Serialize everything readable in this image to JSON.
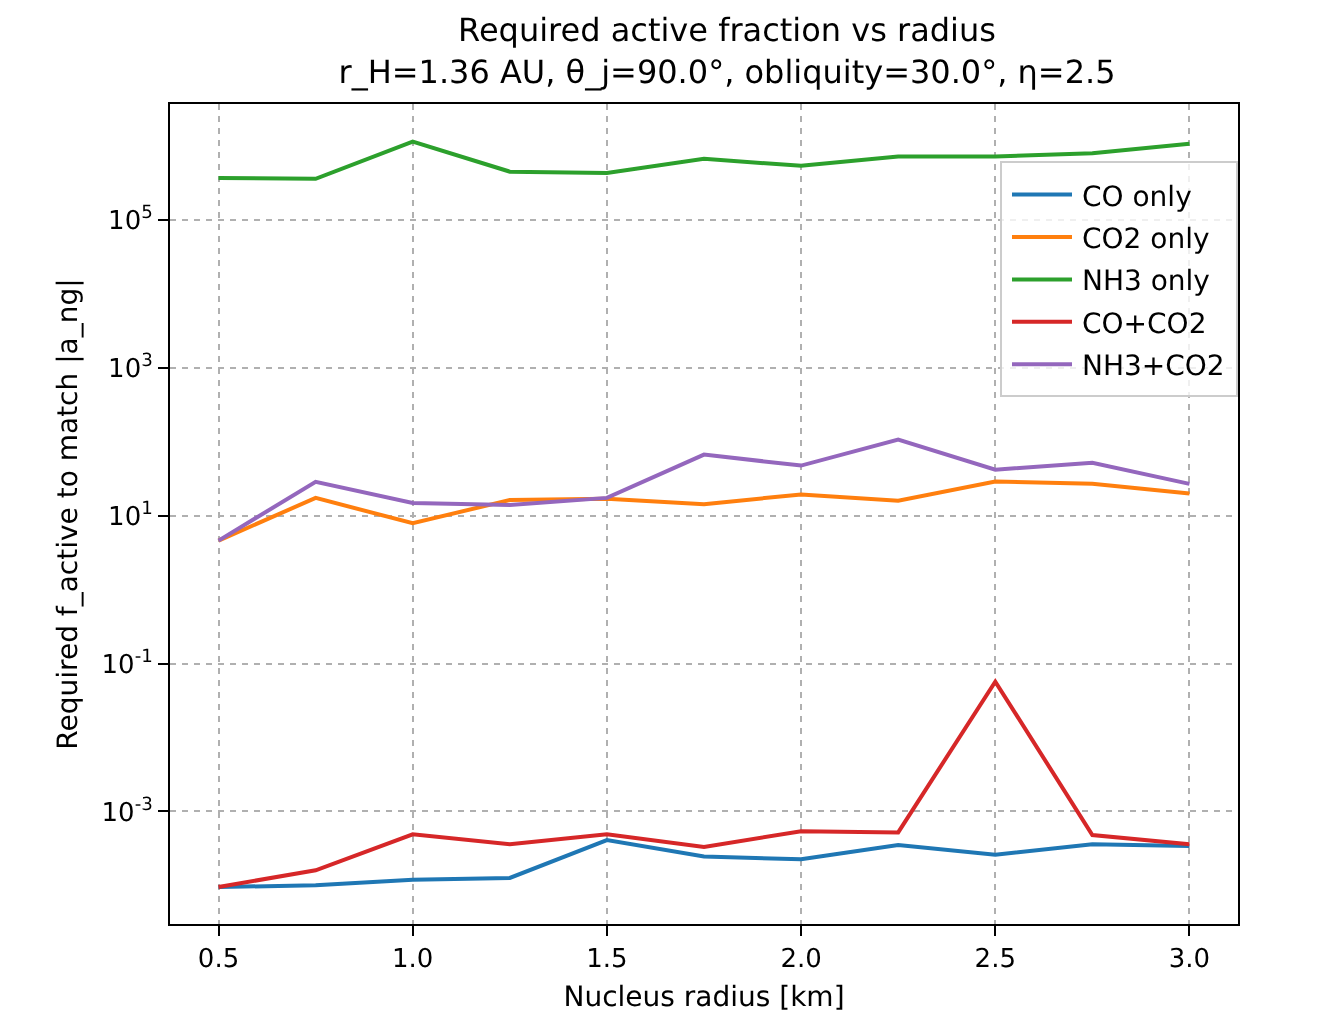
{
  "chart_data": {
    "type": "line",
    "title": "Required active fraction vs radius",
    "subtitle": "r_H=1.36 AU, θ_j=90.0°, obliquity=30.0°, η=2.5",
    "xlabel": "Nucleus radius [km]",
    "ylabel": "Required f_active to match |a_ng|",
    "x": [
      0.5,
      0.75,
      1.0,
      1.25,
      1.5,
      1.75,
      2.0,
      2.25,
      2.5,
      2.75,
      3.0
    ],
    "series": [
      {
        "name": "CO only",
        "color": "#1f77b4",
        "values": [
          9.5e-05,
          0.0001,
          0.000119,
          0.000126,
          0.00041,
          0.000245,
          0.000225,
          0.00035,
          0.00026,
          0.00036,
          0.00034
        ]
      },
      {
        "name": "CO2 only",
        "color": "#ff7f0e",
        "values": [
          4.6,
          17.4,
          7.9,
          16.3,
          17,
          14.3,
          19.4,
          15.9,
          29,
          27,
          19.9
        ]
      },
      {
        "name": "NH3 only",
        "color": "#2ca02c",
        "values": [
          370000,
          360000,
          1150000,
          450000,
          430000,
          670000,
          540000,
          720000,
          720000,
          800000,
          1070000
        ]
      },
      {
        "name": "CO+CO2",
        "color": "#d62728",
        "values": [
          9.5e-05,
          0.00016,
          0.00049,
          0.00036,
          0.00049,
          0.00033,
          0.00054,
          0.00052,
          0.057,
          0.00048,
          0.00036
        ]
      },
      {
        "name": "NH3+CO2",
        "color": "#9467bd",
        "values": [
          4.6,
          28.7,
          14.9,
          13.9,
          17.4,
          67,
          47.6,
          107,
          41.8,
          52,
          26.9
        ]
      }
    ],
    "xlim": [
      0.375,
      3.125
    ],
    "xticks": [
      {
        "value": 0.5,
        "label": "0.5"
      },
      {
        "value": 1.0,
        "label": "1.0"
      },
      {
        "value": 1.5,
        "label": "1.5"
      },
      {
        "value": 2.0,
        "label": "2.0"
      },
      {
        "value": 2.5,
        "label": "2.5"
      },
      {
        "value": 3.0,
        "label": "3.0"
      }
    ],
    "ylim": [
      3e-05,
      3700000
    ],
    "yticks": [
      {
        "value": 0.001,
        "label": "10$^{-3}$"
      },
      {
        "value": 0.1,
        "label": "10$^{-1}$"
      },
      {
        "value": 10,
        "label": "10$^{1}$"
      },
      {
        "value": 1000,
        "label": "10$^{3}$"
      },
      {
        "value": 100000,
        "label": "10$^{5}$"
      }
    ],
    "log": "y",
    "grid": true,
    "legend": "top right",
    "marker": "none",
    "line_style": "solid"
  }
}
